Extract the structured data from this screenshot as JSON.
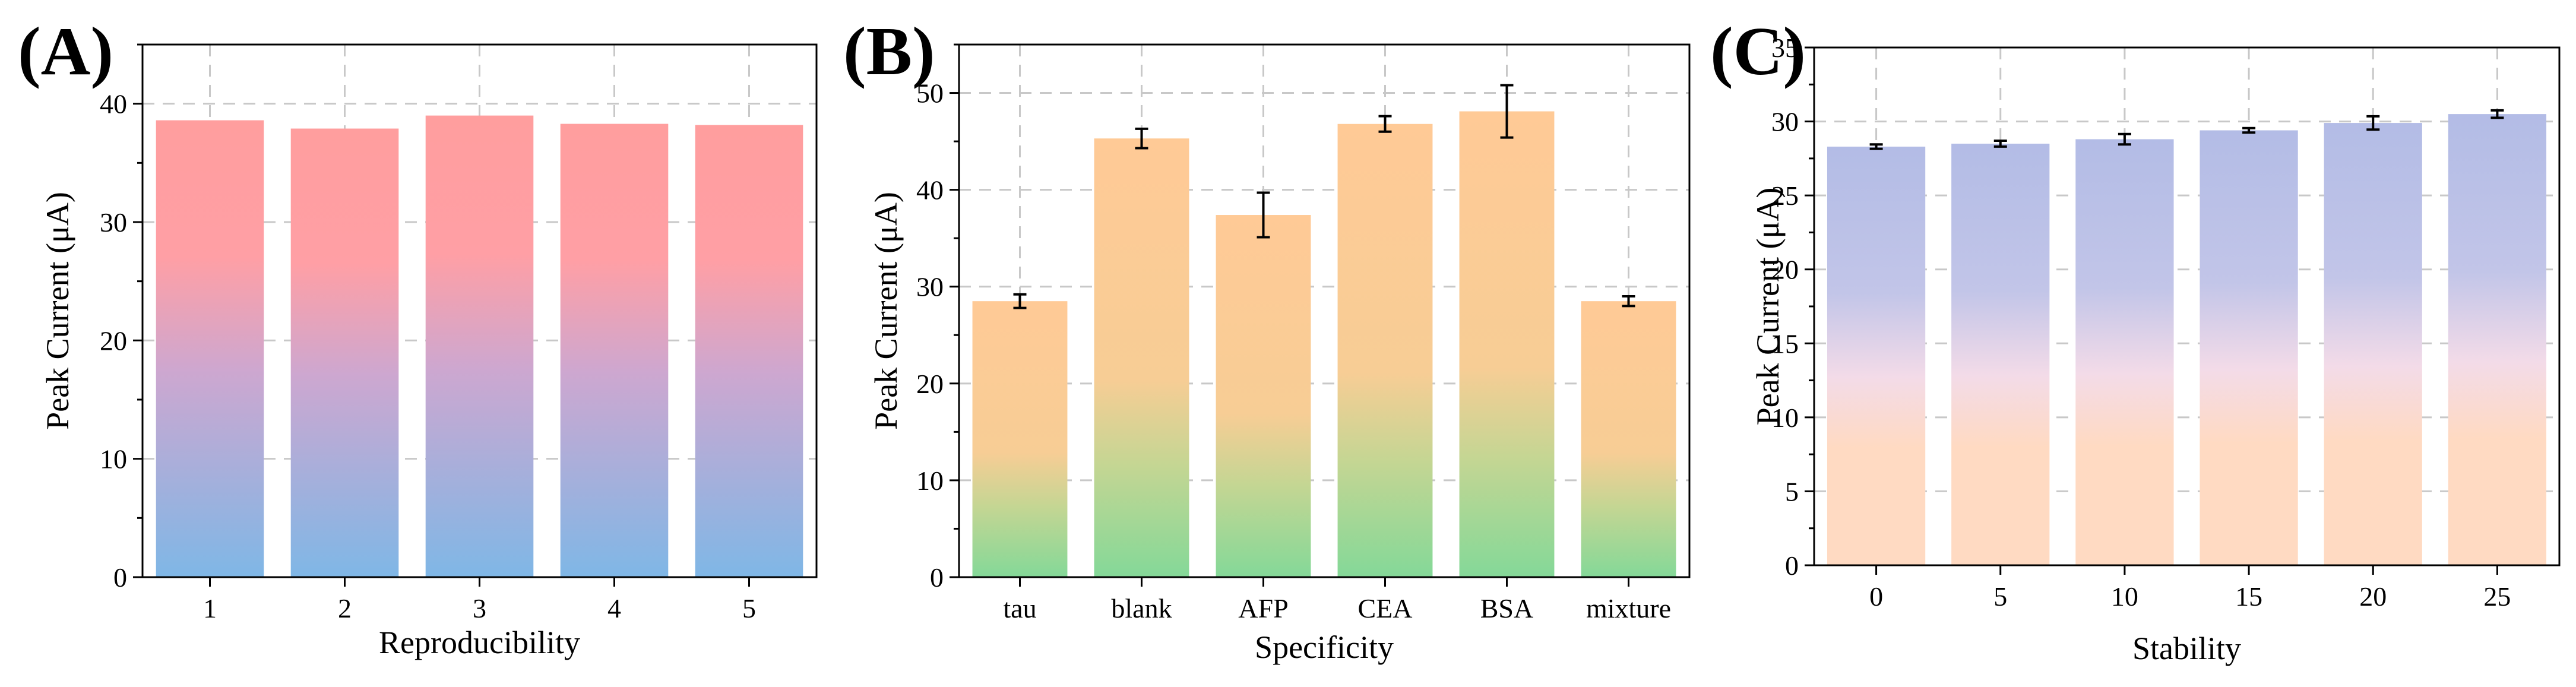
{
  "chart_data": [
    {
      "type": "bar",
      "panel_label": "(A)",
      "xlabel": "Reproducibility",
      "ylabel": "Peak Current (μA)",
      "categories": [
        "1",
        "2",
        "3",
        "4",
        "5"
      ],
      "values": [
        38.6,
        37.9,
        39.0,
        38.3,
        38.2
      ],
      "errors": null,
      "ylim": [
        0,
        45
      ],
      "yticks": [
        "0",
        "10",
        "20",
        "30",
        "40"
      ],
      "grid": true,
      "colors": {
        "top": "#ff9e9e",
        "bottom": "#7fb7e6"
      }
    },
    {
      "type": "bar",
      "panel_label": "(B)",
      "xlabel": "Specificity",
      "ylabel": "Peak Current (μA)",
      "categories": [
        "tau",
        "blank",
        "AFP",
        "CEA",
        "BSA",
        "mixture"
      ],
      "values": [
        28.5,
        45.3,
        37.4,
        46.8,
        48.1,
        28.5
      ],
      "errors": [
        0.7,
        1.0,
        2.3,
        0.8,
        2.7,
        0.5
      ],
      "ylim": [
        0,
        55
      ],
      "yticks": [
        "0",
        "10",
        "20",
        "30",
        "40",
        "50"
      ],
      "grid": true,
      "colors": {
        "top": "#ffca96",
        "bottom": "#84d898"
      }
    },
    {
      "type": "bar",
      "panel_label": "(C)",
      "xlabel": "Stability",
      "ylabel": "Peak Current (μA)",
      "categories": [
        "0",
        "5",
        "10",
        "15",
        "20",
        "25"
      ],
      "values": [
        28.3,
        28.5,
        28.8,
        29.4,
        29.9,
        30.5
      ],
      "errors": [
        0.15,
        0.2,
        0.35,
        0.15,
        0.45,
        0.25
      ],
      "ylim": [
        0,
        35
      ],
      "yticks": [
        "0",
        "5",
        "10",
        "15",
        "20",
        "25",
        "30",
        "35"
      ],
      "grid": true,
      "colors": {
        "top": "#b3bce6",
        "mid": "#f3dbe8",
        "bottom": "#ffdac2"
      }
    }
  ]
}
